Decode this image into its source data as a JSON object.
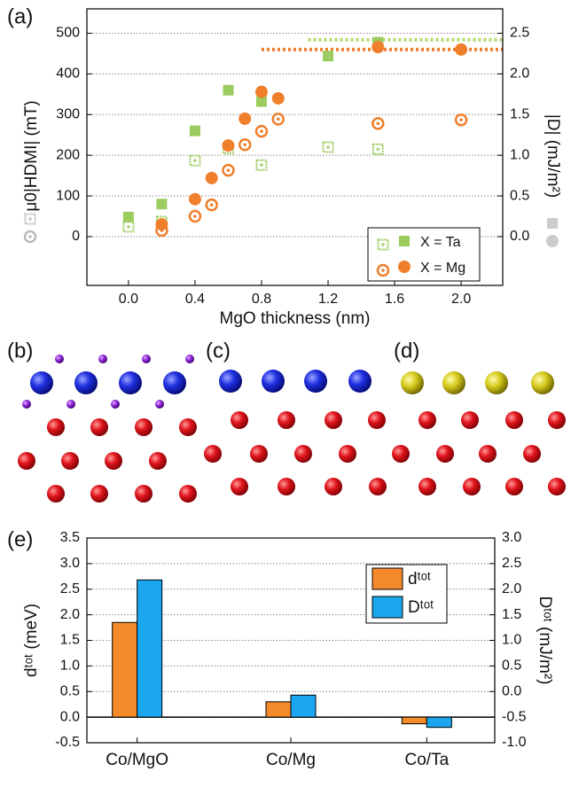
{
  "chart_data": [
    {
      "type": "scatter",
      "panel_label": "(a)",
      "xlabel": "MgO thickness (nm)",
      "ylabel": "μ0|HDMI| (mT)",
      "y2label": "|D| (mJ/m²)",
      "xlim": [
        -0.25,
        2.25
      ],
      "xticks": [
        {
          "value": 0,
          "label": "0.0"
        },
        {
          "value": 0.4,
          "label": "0.4"
        },
        {
          "value": 0.8,
          "label": "0.8"
        },
        {
          "value": 1.2,
          "label": "1.2"
        },
        {
          "value": 1.6,
          "label": "1.6"
        },
        {
          "value": 2.0,
          "label": "2.0"
        }
      ],
      "ylim": [
        -120,
        560
      ],
      "yticks": [
        0,
        100,
        200,
        300,
        400,
        500
      ],
      "y2lim": [
        -0.6,
        2.8
      ],
      "y2ticks": [
        {
          "value": 0,
          "label": "0.0"
        },
        {
          "value": 0.5,
          "label": "0.5"
        },
        {
          "value": 1.0,
          "label": "1.0"
        },
        {
          "value": 1.5,
          "label": "1.5"
        },
        {
          "value": 2.0,
          "label": "2.0"
        },
        {
          "value": 2.5,
          "label": "2.5"
        }
      ],
      "grid": true,
      "series": [
        {
          "name": "X = Ta",
          "marker": "square-open",
          "color": "#9ccc5f",
          "x": [
            0,
            0.2,
            0.4,
            0.6,
            0.8,
            1.2,
            1.5
          ],
          "values": [
            24,
            37,
            187,
            217,
            176,
            220,
            215
          ]
        },
        {
          "marker": "square",
          "axis": "y2",
          "color": "#9ccc5f",
          "x": [
            0,
            0.2,
            0.4,
            0.6,
            0.8,
            1.2,
            1.5
          ],
          "values": [
            0.24,
            0.4,
            1.3,
            1.8,
            1.66,
            2.22,
            2.39
          ]
        },
        {
          "name": "X = Mg",
          "marker": "circle-open",
          "color": "#f07f2c",
          "x": [
            0.2,
            0.4,
            0.5,
            0.6,
            0.7,
            0.8,
            0.9,
            1.5,
            2.0
          ],
          "values": [
            15,
            50,
            78,
            163,
            226,
            259,
            289,
            278,
            287
          ]
        },
        {
          "marker": "circle",
          "axis": "y2",
          "color": "#f07f2c",
          "x": [
            0.2,
            0.4,
            0.5,
            0.6,
            0.7,
            0.8,
            0.9,
            1.5,
            2.0
          ],
          "values": [
            0.15,
            0.46,
            0.72,
            1.12,
            1.45,
            1.78,
            1.7,
            2.33,
            2.3
          ]
        }
      ],
      "hlines": [
        {
          "y": 2.42,
          "xmin": 1.08,
          "color": "#b5d96e"
        },
        {
          "y": 2.3,
          "xmin": 0.8,
          "color": "#f07f2c"
        }
      ]
    },
    {
      "type": "bar",
      "panel_label": "(e)",
      "ylabel": "dᵗᵒᵗ (meV)",
      "y2label": "Dᵗᵒᵗ (mJ/m²)",
      "categories": [
        "Co/MgO",
        "Co/Mg",
        "Co/Ta"
      ],
      "ylim": [
        -0.5,
        3.5
      ],
      "yticks": [
        {
          "value": -0.5,
          "label": "-0.5"
        },
        {
          "value": 0,
          "label": "0.0"
        },
        {
          "value": 0.5,
          "label": "0.5"
        },
        {
          "value": 1.0,
          "label": "1.0"
        },
        {
          "value": 1.5,
          "label": "1.5"
        },
        {
          "value": 2.0,
          "label": "2.0"
        },
        {
          "value": 2.5,
          "label": "2.5"
        },
        {
          "value": 3.0,
          "label": "3.0"
        },
        {
          "value": 3.5,
          "label": "3.5"
        }
      ],
      "y2lim": [
        -1.0,
        3.0
      ],
      "y2ticks": [
        {
          "value": -1.0,
          "label": "-1.0"
        },
        {
          "value": -0.5,
          "label": "-0.5"
        },
        {
          "value": 0,
          "label": "0.0"
        },
        {
          "value": 0.5,
          "label": "0.5"
        },
        {
          "value": 1.0,
          "label": "1.0"
        },
        {
          "value": 1.5,
          "label": "1.5"
        },
        {
          "value": 2.0,
          "label": "2.0"
        },
        {
          "value": 2.5,
          "label": "2.5"
        },
        {
          "value": 3.0,
          "label": "3.0"
        }
      ],
      "grid": true,
      "series": [
        {
          "name": "dᵗᵒᵗ",
          "color": "#f48a2a",
          "values": [
            1.85,
            0.3,
            -0.13
          ]
        },
        {
          "name": "Dᵗᵒᵗ",
          "color": "#1aa7ef",
          "axis": "y2",
          "values": [
            2.18,
            -0.07,
            -0.7
          ]
        }
      ]
    }
  ],
  "structures": [
    {
      "label": "(b)"
    },
    {
      "label": "(c)"
    },
    {
      "label": "(d)"
    }
  ]
}
